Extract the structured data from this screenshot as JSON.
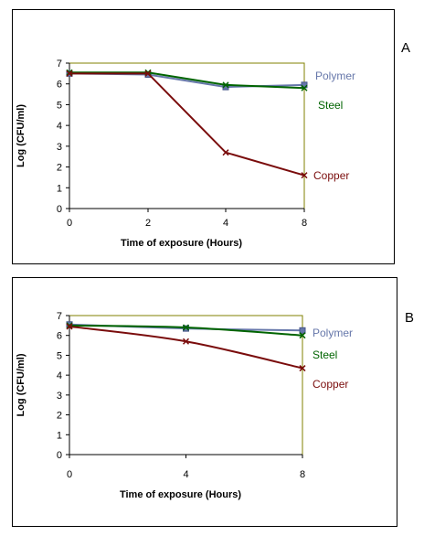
{
  "chart_data": [
    {
      "panel": "A",
      "type": "line",
      "xlabel": "Time of exposure (Hours)",
      "ylabel": "Log (CFU/ml)",
      "x_categories": [
        "0",
        "2",
        "4",
        "8"
      ],
      "ylim": [
        0,
        7
      ],
      "yticks": [
        "0",
        "1",
        "2",
        "3",
        "4",
        "5",
        "6",
        "7"
      ],
      "grid": false,
      "legend": "right, labels at line ends",
      "series": [
        {
          "name": "Polymer",
          "color": "#6677aa",
          "values": [
            6.5,
            6.45,
            5.85,
            5.95
          ]
        },
        {
          "name": "Steel",
          "color": "#006400",
          "values": [
            6.55,
            6.55,
            5.95,
            5.8
          ]
        },
        {
          "name": "Copper",
          "color": "#7a0c0c",
          "values": [
            6.5,
            6.5,
            2.7,
            1.6
          ]
        }
      ]
    },
    {
      "panel": "B",
      "type": "line",
      "xlabel": "Time of exposure (Hours)",
      "ylabel": "Log (CFU/ml)",
      "x_categories": [
        "0",
        "4",
        "8"
      ],
      "ylim": [
        0,
        7
      ],
      "yticks": [
        "0",
        "1",
        "2",
        "3",
        "4",
        "5",
        "6",
        "7"
      ],
      "grid": false,
      "legend": "right, labels at line ends",
      "series": [
        {
          "name": "Polymer",
          "color": "#6677aa",
          "values": [
            6.55,
            6.35,
            6.25
          ]
        },
        {
          "name": "Steel",
          "color": "#006400",
          "values": [
            6.5,
            6.4,
            6.0
          ]
        },
        {
          "name": "Copper",
          "color": "#7a0c0c",
          "values": [
            6.45,
            5.7,
            4.35
          ]
        }
      ]
    }
  ]
}
